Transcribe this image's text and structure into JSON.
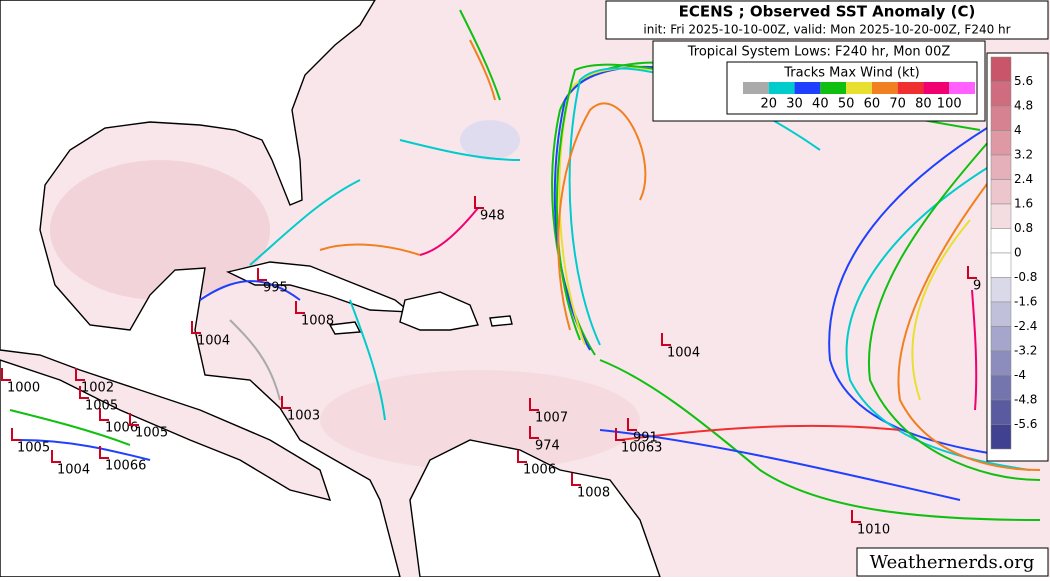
{
  "header": {
    "title": "ECENS ; Observed SST Anomaly (C)",
    "subtitle": "init: Fri 2025-10-10-00Z, valid: Mon 2025-10-20-00Z, F240 hr"
  },
  "lows_legend": {
    "title": "Tropical System Lows: F240 hr, Mon 00Z",
    "wind_title": "Tracks Max Wind (kt)",
    "wind_colors": [
      "#aaaaaa",
      "#00cccc",
      "#2040ff",
      "#10c010",
      "#e8e030",
      "#f08020",
      "#f03030",
      "#f00070",
      "#ff60ff"
    ],
    "wind_labels": [
      20,
      30,
      40,
      50,
      60,
      70,
      80,
      100
    ]
  },
  "colorbar": {
    "labels": [
      5.6,
      4.8,
      4,
      3.2,
      2.4,
      1.6,
      0.8,
      0,
      -0.8,
      -1.6,
      -2.4,
      -3.2,
      -4,
      -4.8,
      -5.6
    ]
  },
  "lows": [
    "948",
    "995",
    "1008",
    "1004",
    "1003",
    "1007",
    "974",
    "1004",
    "991",
    "10063",
    "1008",
    "1006",
    "1010",
    "1000",
    "1002",
    "1005",
    "1006",
    "1005",
    "1004",
    "1005",
    "10066",
    "9"
  ],
  "watermark": "Weathernerds.org"
}
